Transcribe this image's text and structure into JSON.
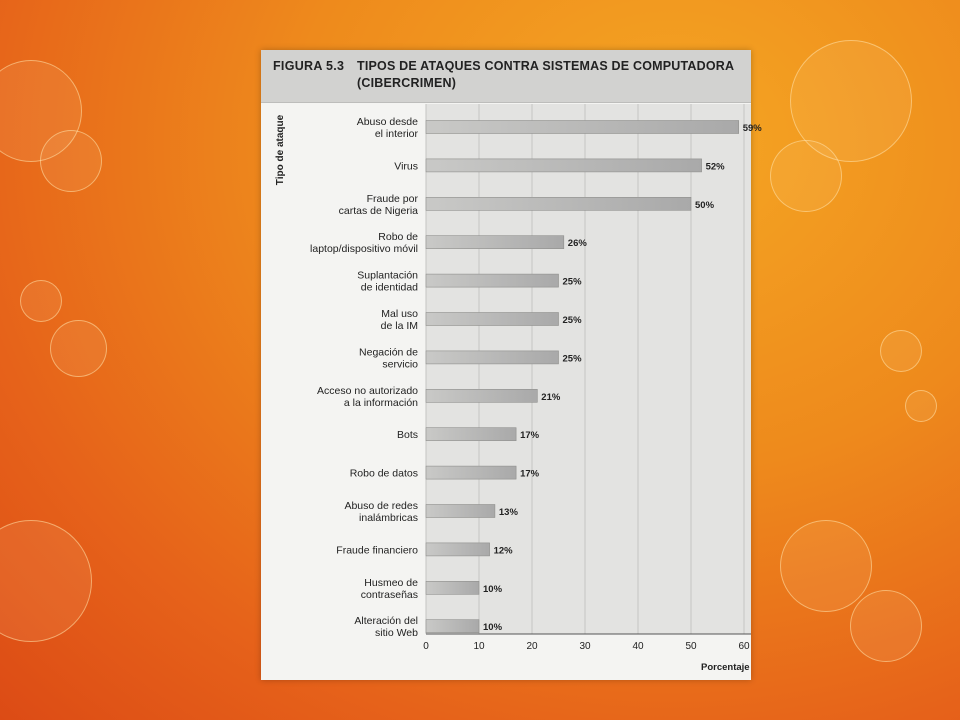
{
  "figure": {
    "label": "FIGURA 5.3",
    "title": "TIPOS DE ATAQUES CONTRA SISTEMAS DE COMPUTADORA\n(CIBERCRIMEN)"
  },
  "chart_data": {
    "type": "bar",
    "orientation": "horizontal",
    "ylabel": "Tipo de ataque",
    "xlabel": "Porcentaje",
    "xlim": [
      0,
      60
    ],
    "xticks": [
      0,
      10,
      20,
      30,
      40,
      50,
      60
    ],
    "grid": true,
    "bar_color": "#a9a9a9",
    "categories": [
      [
        "Abuso desde",
        "el interior"
      ],
      [
        "Virus"
      ],
      [
        "Fraude por",
        "cartas de Nigeria"
      ],
      [
        "Robo de",
        "laptop/dispositivo móvil"
      ],
      [
        "Suplantación",
        "de identidad"
      ],
      [
        "Mal uso",
        "de la IM"
      ],
      [
        "Negación de",
        "servicio"
      ],
      [
        "Acceso no autorizado",
        "a la información"
      ],
      [
        "Bots"
      ],
      [
        "Robo de datos"
      ],
      [
        "Abuso de redes",
        "inalámbricas"
      ],
      [
        "Fraude financiero"
      ],
      [
        "Husmeo de",
        "contraseñas"
      ],
      [
        "Alteración del",
        "sitio Web"
      ]
    ],
    "values": [
      59,
      52,
      50,
      26,
      25,
      25,
      25,
      21,
      17,
      17,
      13,
      12,
      10,
      10
    ],
    "data_labels": [
      "59%",
      "52%",
      "50%",
      "26%",
      "25%",
      "25%",
      "25%",
      "21%",
      "17%",
      "17%",
      "13%",
      "12%",
      "10%",
      "10%"
    ]
  }
}
